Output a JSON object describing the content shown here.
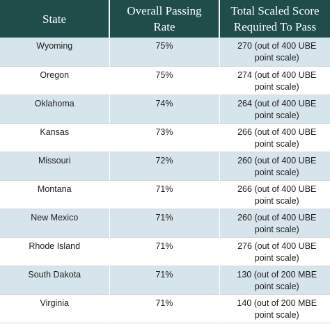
{
  "header": {
    "state": "State",
    "passing_rate": "Overall Passing Rate",
    "score": "Total Scaled Score Required To Pass"
  },
  "rows": [
    {
      "state": "Wyoming",
      "rate": "75%",
      "score": "270 (out of 400 UBE point scale)"
    },
    {
      "state": "Oregon",
      "rate": "75%",
      "score": "274 (out of 400 UBE point scale)"
    },
    {
      "state": "Oklahoma",
      "rate": "74%",
      "score": "264 (out of 400 UBE point scale)"
    },
    {
      "state": "Kansas",
      "rate": "73%",
      "score": "266 (out of 400 UBE point scale)"
    },
    {
      "state": "Missouri",
      "rate": "72%",
      "score": "260 (out of 400 UBE point scale)"
    },
    {
      "state": "Montana",
      "rate": "71%",
      "score": "266 (out of 400 UBE point scale)"
    },
    {
      "state": "New Mexico",
      "rate": "71%",
      "score": "260 (out of 400 UBE point scale)"
    },
    {
      "state": "Rhode Island",
      "rate": "71%",
      "score": "276 (out of 400 UBE point scale)"
    },
    {
      "state": "South Dakota",
      "rate": "71%",
      "score": "130 (out of 200 MBE point scale)"
    },
    {
      "state": "Virginia",
      "rate": "71%",
      "score": "140 (out of 200 MBE point scale)"
    }
  ],
  "colors": {
    "header_bg": "#1e4d4a",
    "header_text": "#ffffff",
    "row_shade": "#d6e4eb",
    "row_plain": "#ffffff"
  }
}
